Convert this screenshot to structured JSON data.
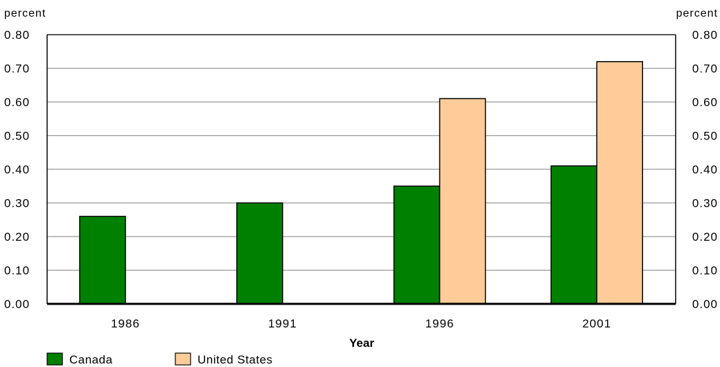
{
  "chart_data": {
    "type": "bar",
    "y_unit_left": "percent",
    "y_unit_right": "percent",
    "xlabel": "Year",
    "categories": [
      "1986",
      "1991",
      "1996",
      "2001"
    ],
    "series": [
      {
        "name": "Canada",
        "color": "#008000",
        "values": [
          0.26,
          0.3,
          0.35,
          0.41
        ]
      },
      {
        "name": "United States",
        "color": "#FFCC99",
        "values": [
          null,
          null,
          0.61,
          0.72
        ]
      }
    ],
    "ylim": [
      0,
      0.8
    ],
    "y_ticks": [
      "0.00",
      "0.10",
      "0.20",
      "0.30",
      "0.40",
      "0.50",
      "0.60",
      "0.70",
      "0.80"
    ],
    "y_tick_values": [
      0,
      0.1,
      0.2,
      0.3,
      0.4,
      0.5,
      0.6,
      0.7,
      0.8
    ],
    "grid": true,
    "legend_position": "bottom-left"
  }
}
